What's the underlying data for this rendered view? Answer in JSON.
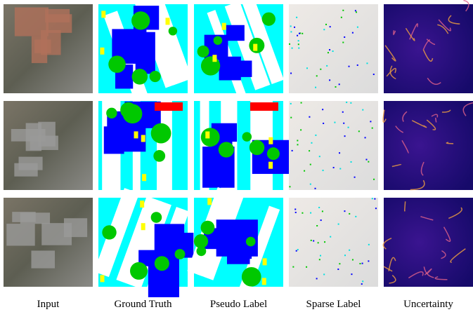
{
  "columns": [
    "Input",
    "Ground Truth",
    "Pseudo Label",
    "Sparse Label",
    "Uncertainty"
  ]
}
